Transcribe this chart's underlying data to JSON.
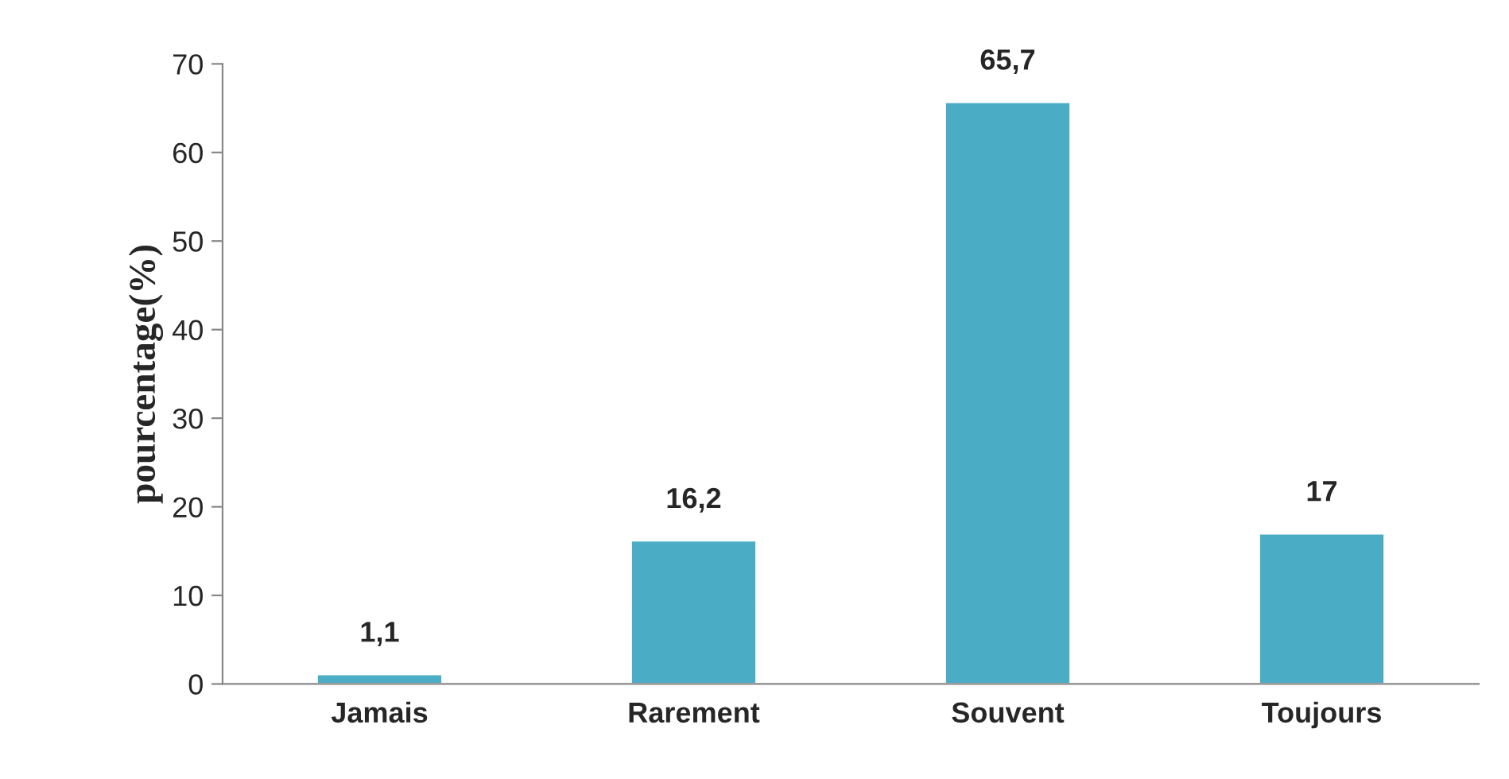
{
  "chart_data": {
    "type": "bar",
    "ylabel": "pourcentage(%)",
    "categories": [
      "Jamais",
      "Rarement",
      "Souvent",
      "Toujours"
    ],
    "values": [
      1.1,
      16.2,
      65.7,
      17
    ],
    "value_labels": [
      "1,1",
      "16,2",
      "65,7",
      "17"
    ],
    "color": "#4bacc6",
    "ylim": [
      0,
      70
    ],
    "yticks": [
      0,
      10,
      20,
      30,
      40,
      50,
      60,
      70
    ],
    "grid": false,
    "legend": false
  }
}
